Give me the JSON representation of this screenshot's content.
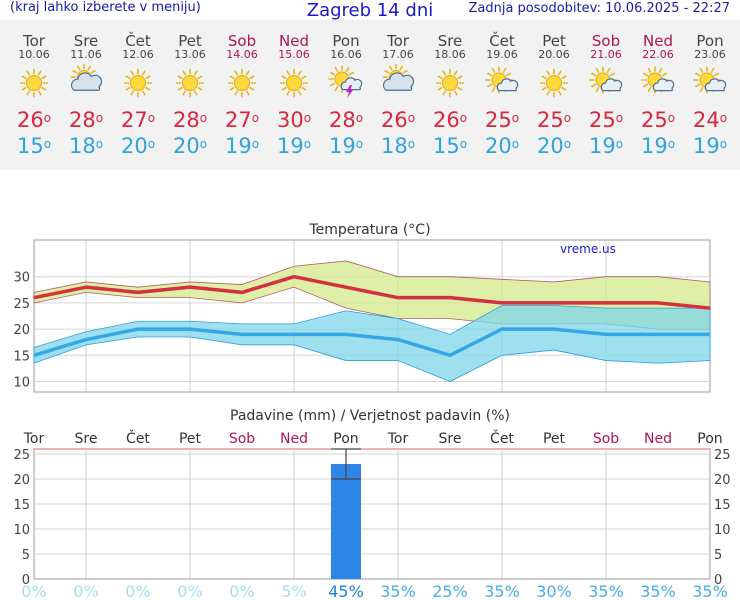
{
  "header": {
    "menu_hint": "(kraj lahko izberete v meniju)",
    "title": "Zagreb 14 dni",
    "updated": "Zadnja posodobitev: 10.06.2025 - 22:27"
  },
  "colors": {
    "max": "#d8283e",
    "min": "#2fa3df",
    "weekend": "#b0135a",
    "bar": "#2e86e8"
  },
  "days": [
    {
      "name": "Tor",
      "date": "10.06",
      "icon": "sun-icon",
      "max": "26",
      "min": "15",
      "weekend": false
    },
    {
      "name": "Sre",
      "date": "11.06",
      "icon": "partly-cloudy-icon",
      "max": "28",
      "min": "18",
      "weekend": false
    },
    {
      "name": "Čet",
      "date": "12.06",
      "icon": "sun-icon",
      "max": "27",
      "min": "20",
      "weekend": false
    },
    {
      "name": "Pet",
      "date": "13.06",
      "icon": "sun-icon",
      "max": "28",
      "min": "20",
      "weekend": false
    },
    {
      "name": "Sob",
      "date": "14.06",
      "icon": "sun-icon",
      "max": "27",
      "min": "19",
      "weekend": true
    },
    {
      "name": "Ned",
      "date": "15.06",
      "icon": "sun-icon",
      "max": "30",
      "min": "19",
      "weekend": true
    },
    {
      "name": "Pon",
      "date": "16.06",
      "icon": "thunderstorm-icon",
      "max": "28",
      "min": "19",
      "weekend": false
    },
    {
      "name": "Tor",
      "date": "17.06",
      "icon": "partly-cloudy-icon",
      "max": "26",
      "min": "18",
      "weekend": false
    },
    {
      "name": "Sre",
      "date": "18.06",
      "icon": "sun-icon",
      "max": "26",
      "min": "15",
      "weekend": false
    },
    {
      "name": "Čet",
      "date": "19.06",
      "icon": "sun-cloud-icon",
      "max": "25",
      "min": "20",
      "weekend": false
    },
    {
      "name": "Pet",
      "date": "20.06",
      "icon": "sun-icon",
      "max": "25",
      "min": "20",
      "weekend": false
    },
    {
      "name": "Sob",
      "date": "21.06",
      "icon": "sun-cloud-icon",
      "max": "25",
      "min": "19",
      "weekend": true
    },
    {
      "name": "Ned",
      "date": "22.06",
      "icon": "sun-cloud-icon",
      "max": "25",
      "min": "19",
      "weekend": true
    },
    {
      "name": "Pon",
      "date": "23.06",
      "icon": "sun-cloud-icon",
      "max": "24",
      "min": "19",
      "weekend": false
    }
  ],
  "chart_data": [
    {
      "type": "line",
      "title": "Temperatura (°C)",
      "watermark": "vreme.us",
      "categories": [
        "10.06",
        "11.06",
        "12.06",
        "13.06",
        "14.06",
        "15.06",
        "16.06",
        "17.06",
        "18.06",
        "19.06",
        "20.06",
        "21.06",
        "22.06",
        "23.06"
      ],
      "ylim": [
        8,
        37
      ],
      "yticks": [
        10,
        15,
        20,
        25,
        30
      ],
      "series": [
        {
          "values": [
            26,
            28,
            27,
            28,
            27,
            30,
            28,
            26,
            26,
            25,
            25,
            25,
            25,
            24
          ]
        },
        {
          "values": [
            15,
            18,
            20,
            20,
            19,
            19,
            19,
            18,
            15,
            20,
            20,
            19,
            19,
            19
          ]
        },
        {
          "values": [
            27,
            29,
            28,
            29,
            28.5,
            32,
            33,
            30,
            30,
            29.5,
            29,
            30,
            30,
            29
          ]
        },
        {
          "values": [
            25,
            27,
            26,
            26,
            25,
            28,
            24,
            22,
            22,
            21,
            21,
            21,
            20,
            20
          ]
        },
        {
          "values": [
            16.5,
            19.5,
            21.5,
            21.5,
            21,
            21,
            23.5,
            22,
            19,
            24.5,
            24.5,
            24,
            24,
            24
          ]
        },
        {
          "values": [
            13.5,
            17,
            18.5,
            18.5,
            17,
            17,
            14,
            14,
            10,
            15,
            16,
            14,
            13.5,
            14
          ]
        }
      ]
    },
    {
      "type": "bar",
      "title": "Padavine (mm) / Verjetnost padavin (%)",
      "categories": [
        "Tor",
        "Sre",
        "Čet",
        "Pet",
        "Sob",
        "Ned",
        "Pon",
        "Tor",
        "Sre",
        "Čet",
        "Pet",
        "Sob",
        "Ned",
        "Pon"
      ],
      "weekend": [
        false,
        false,
        false,
        false,
        true,
        true,
        false,
        false,
        false,
        false,
        false,
        true,
        true,
        false
      ],
      "values": [
        0,
        0,
        0,
        0,
        0,
        0,
        23,
        0,
        0,
        0,
        0,
        0,
        0,
        0
      ],
      "error_range": [
        [
          0,
          0
        ],
        [
          0,
          0
        ],
        [
          0,
          0
        ],
        [
          0,
          0
        ],
        [
          0,
          0
        ],
        [
          0,
          0
        ],
        [
          20,
          26
        ],
        [
          0,
          0
        ],
        [
          0,
          0
        ],
        [
          0,
          0
        ],
        [
          0,
          0
        ],
        [
          0,
          0
        ],
        [
          0,
          0
        ],
        [
          0,
          0
        ]
      ],
      "probability_labels": [
        "0%",
        "0%",
        "0%",
        "0%",
        "0%",
        "5%",
        "45%",
        "35%",
        "25%",
        "35%",
        "30%",
        "35%",
        "35%",
        "35%"
      ],
      "probability": [
        0,
        0,
        0,
        0,
        0,
        5,
        45,
        35,
        25,
        35,
        30,
        35,
        35,
        35
      ],
      "ylim": [
        0,
        26
      ],
      "yticks": [
        0,
        5,
        10,
        15,
        20,
        25
      ]
    }
  ]
}
